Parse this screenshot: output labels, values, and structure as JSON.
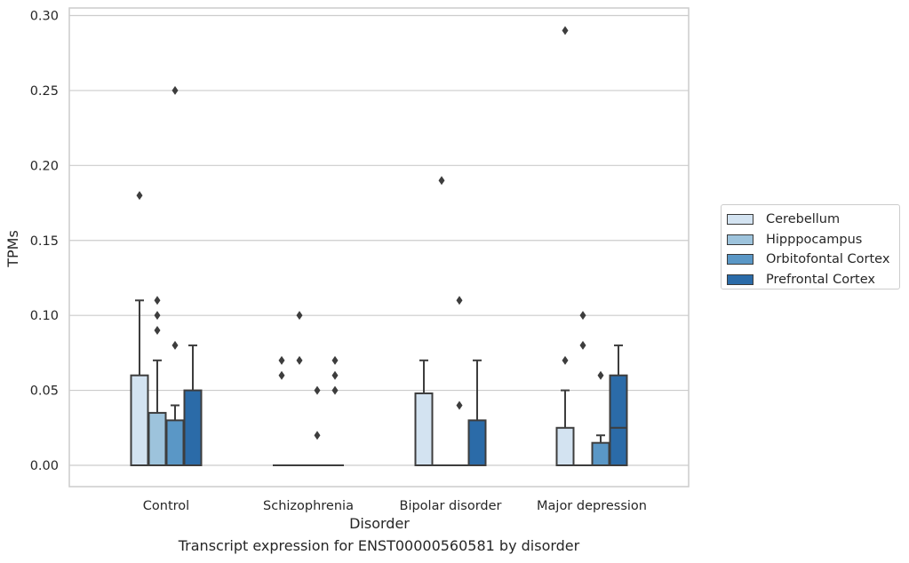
{
  "chart_data": {
    "type": "box",
    "title": "",
    "xlabel": "Disorder",
    "ylabel": "TPMs",
    "caption": "Transcript expression for ENST00000560581 by disorder",
    "categories": [
      "Control",
      "Schizophrenia",
      "Bipolar disorder",
      "Major depression"
    ],
    "ylim": [
      -0.014,
      0.305
    ],
    "yticks": [
      "0.00",
      "0.05",
      "0.10",
      "0.15",
      "0.20",
      "0.25",
      "0.30"
    ],
    "grid": "horizontal",
    "legend_position": "right",
    "series": [
      {
        "name": "Cerebellum",
        "color": "#d3e3f1",
        "boxes": [
          {
            "q1": 0,
            "median": 0,
            "q3": 0.06,
            "whisker_low": 0,
            "whisker_high": 0.11,
            "outliers": [
              0.18
            ]
          },
          {
            "q1": 0,
            "median": 0,
            "q3": 0,
            "whisker_low": 0,
            "whisker_high": 0,
            "outliers": [
              0.06,
              0.07
            ]
          },
          {
            "q1": 0,
            "median": 0,
            "q3": 0.048,
            "whisker_low": 0,
            "whisker_high": 0.07,
            "outliers": []
          },
          {
            "q1": 0,
            "median": 0,
            "q3": 0.025,
            "whisker_low": 0,
            "whisker_high": 0.05,
            "outliers": [
              0.07,
              0.29
            ]
          }
        ]
      },
      {
        "name": "Hipppocampus",
        "color": "#9dc3dc",
        "boxes": [
          {
            "q1": 0,
            "median": 0,
            "q3": 0.035,
            "whisker_low": 0,
            "whisker_high": 0.07,
            "outliers": [
              0.09,
              0.1,
              0.11
            ]
          },
          {
            "q1": 0,
            "median": 0,
            "q3": 0,
            "whisker_low": 0,
            "whisker_high": 0,
            "outliers": [
              0.07,
              0.1
            ]
          },
          {
            "q1": 0,
            "median": 0,
            "q3": 0,
            "whisker_low": 0,
            "whisker_high": 0,
            "outliers": [
              0.19
            ]
          },
          {
            "q1": 0,
            "median": 0,
            "q3": 0,
            "whisker_low": 0,
            "whisker_high": 0,
            "outliers": [
              0.08,
              0.1
            ]
          }
        ]
      },
      {
        "name": "Orbitofontal Cortex",
        "color": "#5a97c6",
        "boxes": [
          {
            "q1": 0,
            "median": 0,
            "q3": 0.03,
            "whisker_low": 0,
            "whisker_high": 0.04,
            "outliers": [
              0.08,
              0.25
            ]
          },
          {
            "q1": 0,
            "median": 0,
            "q3": 0,
            "whisker_low": 0,
            "whisker_high": 0,
            "outliers": [
              0.02,
              0.05
            ]
          },
          {
            "q1": 0,
            "median": 0,
            "q3": 0,
            "whisker_low": 0,
            "whisker_high": 0,
            "outliers": [
              0.04,
              0.11
            ]
          },
          {
            "q1": 0,
            "median": 0,
            "q3": 0.015,
            "whisker_low": 0,
            "whisker_high": 0.02,
            "outliers": [
              0.06
            ]
          }
        ]
      },
      {
        "name": "Prefrontal Cortex",
        "color": "#2b6ba8",
        "boxes": [
          {
            "q1": 0,
            "median": 0,
            "q3": 0.05,
            "whisker_low": 0,
            "whisker_high": 0.08,
            "outliers": []
          },
          {
            "q1": 0,
            "median": 0,
            "q3": 0,
            "whisker_low": 0,
            "whisker_high": 0,
            "outliers": [
              0.05,
              0.06,
              0.07
            ]
          },
          {
            "q1": 0,
            "median": 0,
            "q3": 0.03,
            "whisker_low": 0,
            "whisker_high": 0.07,
            "outliers": []
          },
          {
            "q1": 0,
            "median": 0.025,
            "q3": 0.06,
            "whisker_low": 0,
            "whisker_high": 0.08,
            "outliers": []
          }
        ]
      }
    ]
  }
}
